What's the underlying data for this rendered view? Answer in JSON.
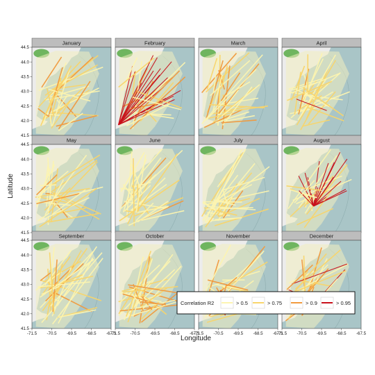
{
  "chart_data": {
    "type": "map-network",
    "xlabel": "Longitude",
    "ylabel": "Latitude",
    "xlim": [
      -71.5,
      -67.5
    ],
    "ylim": [
      41.5,
      44.5
    ],
    "x_ticks": [
      -71.5,
      -70.5,
      -69.5,
      -68.5,
      -67.5
    ],
    "x_tick_labels": [
      "-71.5",
      "-70.5",
      "-69.5",
      "-68.5",
      "-67.5"
    ],
    "y_ticks": [
      41.5,
      42.0,
      42.5,
      43.0,
      43.5,
      44.0,
      44.5
    ],
    "y_tick_labels": [
      "41.5",
      "42.0",
      "42.5",
      "43.0",
      "43.5",
      "44.0",
      "44.5"
    ],
    "panels": [
      "January",
      "February",
      "March",
      "April",
      "May",
      "June",
      "July",
      "August",
      "September",
      "October",
      "November",
      "December"
    ],
    "legend": {
      "title": "Correlation R2",
      "position": "bottom-right",
      "entries": [
        {
          "label": "> 0.5",
          "color": "#fdf5b0"
        },
        {
          "label": "> 0.75",
          "color": "#f9d56b"
        },
        {
          "label": "> 0.9",
          "color": "#f19a3e"
        },
        {
          "label": "> 0.95",
          "color": "#c8101a"
        }
      ]
    },
    "colors": {
      "ocean": "#a9c5c7",
      "land": "#ececec",
      "forest": "#6fb55f",
      "strip": "#bdbdbd"
    }
  }
}
